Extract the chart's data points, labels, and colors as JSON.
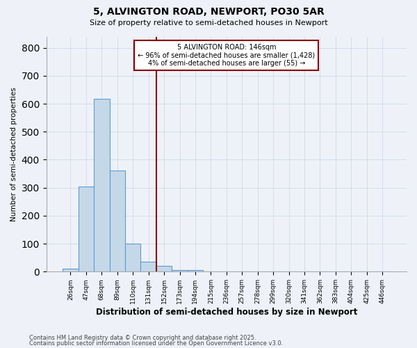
{
  "title_line1": "5, ALVINGTON ROAD, NEWPORT, PO30 5AR",
  "title_line2": "Size of property relative to semi-detached houses in Newport",
  "xlabel": "Distribution of semi-detached houses by size in Newport",
  "ylabel": "Number of semi-detached properties",
  "categories": [
    "26sqm",
    "47sqm",
    "68sqm",
    "89sqm",
    "110sqm",
    "131sqm",
    "152sqm",
    "173sqm",
    "194sqm",
    "215sqm",
    "236sqm",
    "257sqm",
    "278sqm",
    "299sqm",
    "320sqm",
    "341sqm",
    "362sqm",
    "383sqm",
    "404sqm",
    "425sqm",
    "446sqm"
  ],
  "bar_heights": [
    10,
    305,
    617,
    362,
    100,
    35,
    20,
    7,
    5,
    2,
    0,
    0,
    0,
    0,
    0,
    0,
    0,
    0,
    0,
    0,
    0
  ],
  "bar_color": "#c5d8e8",
  "bar_edge_color": "#5b9bd5",
  "vline_x_index": 5,
  "vline_color": "#8b0000",
  "annotation_line1": "5 ALVINGTON ROAD: 146sqm",
  "annotation_line2": "← 96% of semi-detached houses are smaller (1,428)",
  "annotation_line3": "4% of semi-detached houses are larger (55) →",
  "annotation_box_color": "#ffffff",
  "annotation_box_edge": "#8b0000",
  "ylim": [
    0,
    840
  ],
  "yticks": [
    0,
    100,
    200,
    300,
    400,
    500,
    600,
    700,
    800
  ],
  "grid_color": "#d0d8e8",
  "background_color": "#eef2f8",
  "footer_line1": "Contains HM Land Registry data © Crown copyright and database right 2025.",
  "footer_line2": "Contains public sector information licensed under the Open Government Licence v3.0."
}
